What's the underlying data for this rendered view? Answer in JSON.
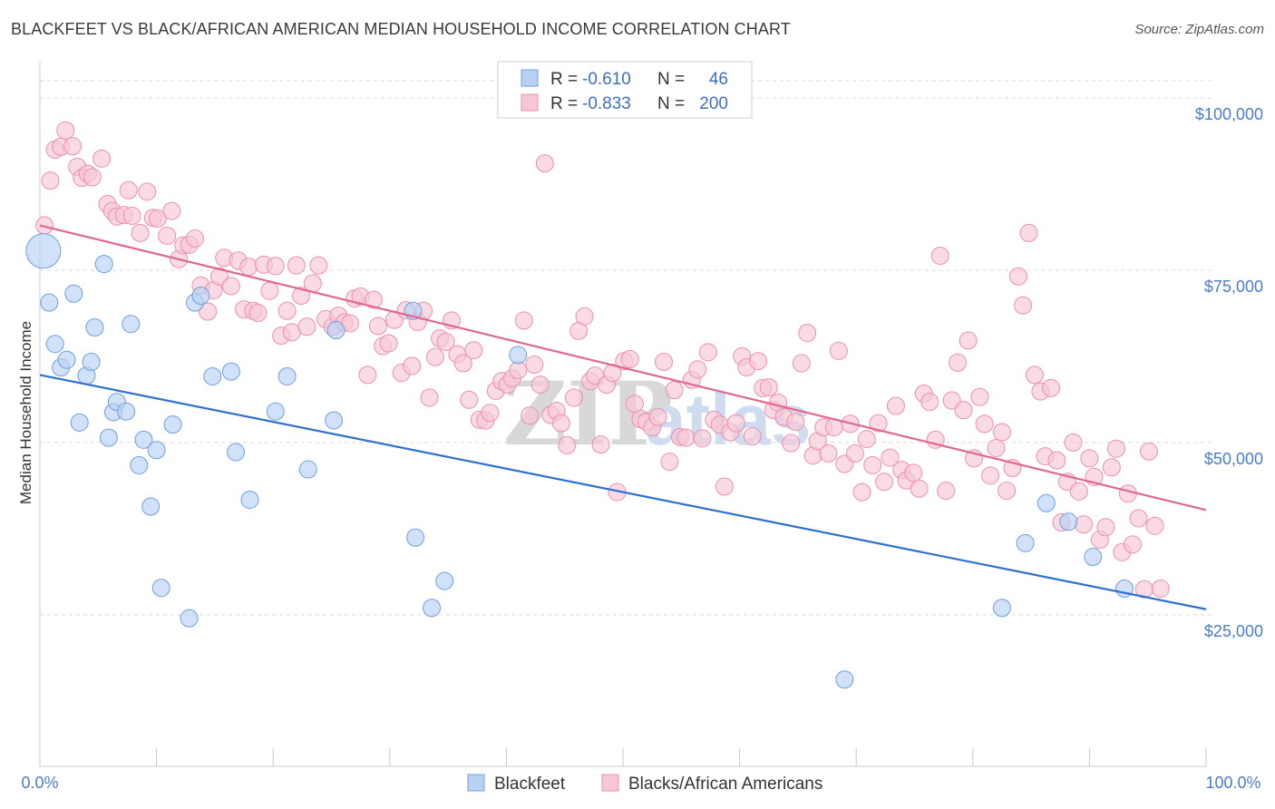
{
  "title": "BLACKFEET VS BLACK/AFRICAN AMERICAN MEDIAN HOUSEHOLD INCOME CORRELATION CHART",
  "source": "Source: ZipAtlas.com",
  "watermark": {
    "zip": "ZIP",
    "atlas": "atlas"
  },
  "colors": {
    "blue_fill": "#b8d1f3",
    "blue_stroke": "#6f9fe0",
    "blue_line": "#2f6fd0",
    "pink_fill": "#f8c7d6",
    "pink_stroke": "#ec8fad",
    "pink_line": "#e06890",
    "grid": "#d9d9d9",
    "tick_label": "#4a7cc9"
  },
  "legend": {
    "rows": [
      {
        "r_label": "R = ",
        "r_value": "-0.610",
        "n_label": "N = ",
        "n_value": "46"
      },
      {
        "r_label": "R = ",
        "r_value": "-0.833",
        "n_label": "N = ",
        "n_value": "200"
      }
    ]
  },
  "chart_data": {
    "type": "scatter",
    "title": "BLACKFEET VS BLACK/AFRICAN AMERICAN MEDIAN HOUSEHOLD INCOME CORRELATION CHART",
    "xlabel": "",
    "ylabel": "Median Household Income",
    "xlim": [
      0,
      100
    ],
    "ylim": [
      3000,
      105000
    ],
    "x_tick_labels": [
      "0.0%",
      "100.0%"
    ],
    "y_ticks": [
      25000,
      50000,
      75000,
      100000
    ],
    "y_tick_labels": [
      "$25,000",
      "$50,000",
      "$75,000",
      "$100,000"
    ],
    "grid": "horizontal dashed",
    "legend_position": "top-center",
    "series": [
      {
        "name": "Blackfeet",
        "color": "#b8d1f3",
        "trend": {
          "x": [
            0,
            100
          ],
          "y": [
            59800,
            25800
          ]
        },
        "points": [
          [
            0.3,
            77800
          ],
          [
            0.8,
            70300
          ],
          [
            1.3,
            64300
          ],
          [
            1.8,
            60900
          ],
          [
            2.3,
            62000
          ],
          [
            2.9,
            71600
          ],
          [
            3.4,
            52900
          ],
          [
            4.0,
            59700
          ],
          [
            4.4,
            61700
          ],
          [
            4.7,
            66700
          ],
          [
            5.5,
            75900
          ],
          [
            5.9,
            50700
          ],
          [
            6.3,
            54400
          ],
          [
            6.6,
            55900
          ],
          [
            7.4,
            54500
          ],
          [
            7.8,
            67200
          ],
          [
            8.5,
            46700
          ],
          [
            8.9,
            50400
          ],
          [
            9.5,
            40700
          ],
          [
            10.0,
            48900
          ],
          [
            10.4,
            28900
          ],
          [
            11.4,
            52600
          ],
          [
            12.8,
            24500
          ],
          [
            13.3,
            70300
          ],
          [
            13.8,
            71300
          ],
          [
            14.8,
            59600
          ],
          [
            16.4,
            60300
          ],
          [
            16.8,
            48600
          ],
          [
            18.0,
            41700
          ],
          [
            20.2,
            54500
          ],
          [
            21.2,
            59600
          ],
          [
            23.0,
            46100
          ],
          [
            25.2,
            53200
          ],
          [
            25.4,
            66300
          ],
          [
            32.0,
            69100
          ],
          [
            32.2,
            36200
          ],
          [
            33.6,
            26000
          ],
          [
            34.7,
            29900
          ],
          [
            41.0,
            62700
          ],
          [
            69.0,
            15600
          ],
          [
            82.5,
            26000
          ],
          [
            84.5,
            35400
          ],
          [
            86.3,
            41200
          ],
          [
            88.2,
            38500
          ],
          [
            90.3,
            33400
          ],
          [
            93.0,
            28800
          ]
        ]
      },
      {
        "name": "Blacks/African Americans",
        "color": "#f8c7d6",
        "trend": {
          "x": [
            0,
            100
          ],
          "y": [
            81500,
            40200
          ]
        },
        "points": [
          [
            0.4,
            81500
          ],
          [
            0.9,
            88000
          ],
          [
            1.3,
            92500
          ],
          [
            1.8,
            92900
          ],
          [
            2.2,
            95300
          ],
          [
            2.8,
            93000
          ],
          [
            3.2,
            90000
          ],
          [
            3.6,
            88400
          ],
          [
            4.1,
            89000
          ],
          [
            4.5,
            88500
          ],
          [
            5.3,
            91200
          ],
          [
            5.8,
            84600
          ],
          [
            6.2,
            83600
          ],
          [
            6.6,
            82800
          ],
          [
            7.2,
            83000
          ],
          [
            7.6,
            86600
          ],
          [
            7.9,
            82900
          ],
          [
            8.6,
            80400
          ],
          [
            9.2,
            86400
          ],
          [
            9.7,
            82600
          ],
          [
            10.1,
            82500
          ],
          [
            10.9,
            80000
          ],
          [
            11.3,
            83600
          ],
          [
            11.9,
            76600
          ],
          [
            12.3,
            78600
          ],
          [
            12.8,
            78700
          ],
          [
            13.3,
            79600
          ],
          [
            13.8,
            72800
          ],
          [
            14.4,
            69000
          ],
          [
            14.9,
            72100
          ],
          [
            15.4,
            74100
          ],
          [
            15.8,
            76800
          ],
          [
            16.4,
            72700
          ],
          [
            17.0,
            76400
          ],
          [
            17.5,
            69300
          ],
          [
            17.9,
            75500
          ],
          [
            18.3,
            69100
          ],
          [
            18.7,
            68800
          ],
          [
            19.2,
            75800
          ],
          [
            19.7,
            72000
          ],
          [
            20.2,
            75600
          ],
          [
            20.7,
            65500
          ],
          [
            21.2,
            69100
          ],
          [
            21.6,
            66000
          ],
          [
            22.0,
            75700
          ],
          [
            22.4,
            71300
          ],
          [
            22.9,
            66800
          ],
          [
            23.4,
            73100
          ],
          [
            23.9,
            75700
          ],
          [
            24.5,
            67900
          ],
          [
            25.1,
            66800
          ],
          [
            25.6,
            68400
          ],
          [
            26.1,
            67400
          ],
          [
            26.6,
            67300
          ],
          [
            27.0,
            70900
          ],
          [
            27.5,
            71200
          ],
          [
            28.1,
            59800
          ],
          [
            28.6,
            70700
          ],
          [
            29.0,
            66900
          ],
          [
            29.4,
            64000
          ],
          [
            29.9,
            64400
          ],
          [
            30.4,
            67800
          ],
          [
            31.0,
            60100
          ],
          [
            31.4,
            69200
          ],
          [
            31.9,
            61100
          ],
          [
            32.4,
            67500
          ],
          [
            32.9,
            69100
          ],
          [
            33.4,
            56500
          ],
          [
            33.9,
            62400
          ],
          [
            34.3,
            65100
          ],
          [
            34.8,
            64600
          ],
          [
            35.3,
            67700
          ],
          [
            35.8,
            62800
          ],
          [
            36.3,
            61500
          ],
          [
            36.8,
            56200
          ],
          [
            37.2,
            63400
          ],
          [
            37.7,
            53300
          ],
          [
            38.2,
            53200
          ],
          [
            38.6,
            54300
          ],
          [
            39.1,
            57500
          ],
          [
            39.6,
            58900
          ],
          [
            40.1,
            58400
          ],
          [
            40.5,
            59300
          ],
          [
            41.0,
            60500
          ],
          [
            41.5,
            67700
          ],
          [
            42.0,
            53900
          ],
          [
            42.4,
            61300
          ],
          [
            42.9,
            58400
          ],
          [
            43.3,
            90500
          ],
          [
            43.8,
            54000
          ],
          [
            44.3,
            54600
          ],
          [
            44.7,
            52800
          ],
          [
            45.2,
            49600
          ],
          [
            45.8,
            56500
          ],
          [
            46.2,
            66200
          ],
          [
            46.7,
            68300
          ],
          [
            47.2,
            58900
          ],
          [
            47.6,
            59700
          ],
          [
            48.1,
            49700
          ],
          [
            48.6,
            58400
          ],
          [
            49.1,
            60100
          ],
          [
            49.5,
            42800
          ],
          [
            50.1,
            61800
          ],
          [
            50.6,
            62100
          ],
          [
            51.0,
            55600
          ],
          [
            51.5,
            53400
          ],
          [
            52.0,
            53000
          ],
          [
            52.5,
            52200
          ],
          [
            53.0,
            53700
          ],
          [
            53.5,
            61700
          ],
          [
            54.0,
            47200
          ],
          [
            54.4,
            57600
          ],
          [
            54.9,
            50800
          ],
          [
            55.4,
            50700
          ],
          [
            55.9,
            59100
          ],
          [
            56.4,
            60600
          ],
          [
            56.8,
            50600
          ],
          [
            57.3,
            63100
          ],
          [
            57.8,
            53300
          ],
          [
            58.3,
            52600
          ],
          [
            58.7,
            43600
          ],
          [
            59.2,
            51500
          ],
          [
            59.7,
            52800
          ],
          [
            60.2,
            62500
          ],
          [
            60.6,
            60900
          ],
          [
            61.1,
            50900
          ],
          [
            61.6,
            61800
          ],
          [
            62.0,
            57900
          ],
          [
            62.5,
            58000
          ],
          [
            62.9,
            54700
          ],
          [
            63.3,
            55800
          ],
          [
            63.8,
            53700
          ],
          [
            64.4,
            49900
          ],
          [
            64.8,
            53000
          ],
          [
            65.3,
            61500
          ],
          [
            65.8,
            65900
          ],
          [
            66.3,
            48100
          ],
          [
            66.7,
            50200
          ],
          [
            67.2,
            52200
          ],
          [
            67.6,
            48400
          ],
          [
            68.1,
            52200
          ],
          [
            68.5,
            63300
          ],
          [
            69.0,
            46900
          ],
          [
            69.5,
            52700
          ],
          [
            69.9,
            48400
          ],
          [
            70.5,
            42800
          ],
          [
            70.9,
            50500
          ],
          [
            71.4,
            46700
          ],
          [
            71.9,
            52800
          ],
          [
            72.4,
            44300
          ],
          [
            72.9,
            47800
          ],
          [
            73.4,
            55300
          ],
          [
            73.9,
            46000
          ],
          [
            74.3,
            44500
          ],
          [
            74.9,
            45600
          ],
          [
            75.4,
            43300
          ],
          [
            75.8,
            57100
          ],
          [
            76.3,
            55900
          ],
          [
            76.8,
            50400
          ],
          [
            77.2,
            77100
          ],
          [
            77.7,
            43000
          ],
          [
            78.2,
            56100
          ],
          [
            78.7,
            61600
          ],
          [
            79.2,
            54700
          ],
          [
            79.6,
            64800
          ],
          [
            80.1,
            47700
          ],
          [
            80.6,
            56600
          ],
          [
            81.0,
            52700
          ],
          [
            81.5,
            45200
          ],
          [
            82.0,
            49200
          ],
          [
            82.5,
            51500
          ],
          [
            82.9,
            43000
          ],
          [
            83.4,
            46300
          ],
          [
            83.9,
            74100
          ],
          [
            84.3,
            69900
          ],
          [
            84.8,
            80400
          ],
          [
            85.3,
            59800
          ],
          [
            85.8,
            57400
          ],
          [
            86.2,
            48000
          ],
          [
            86.7,
            57900
          ],
          [
            87.2,
            47400
          ],
          [
            87.6,
            38400
          ],
          [
            88.1,
            44300
          ],
          [
            88.6,
            50000
          ],
          [
            89.1,
            42900
          ],
          [
            89.5,
            38100
          ],
          [
            90.0,
            47700
          ],
          [
            90.4,
            45000
          ],
          [
            90.9,
            35900
          ],
          [
            91.4,
            37700
          ],
          [
            91.9,
            46400
          ],
          [
            92.3,
            49100
          ],
          [
            92.8,
            34100
          ],
          [
            93.3,
            42600
          ],
          [
            93.7,
            35200
          ],
          [
            94.2,
            39000
          ],
          [
            94.7,
            28700
          ],
          [
            95.1,
            48700
          ],
          [
            95.6,
            37900
          ],
          [
            96.1,
            28800
          ]
        ]
      }
    ]
  },
  "bottom_legend": [
    "Blackfeet",
    "Blacks/African Americans"
  ]
}
